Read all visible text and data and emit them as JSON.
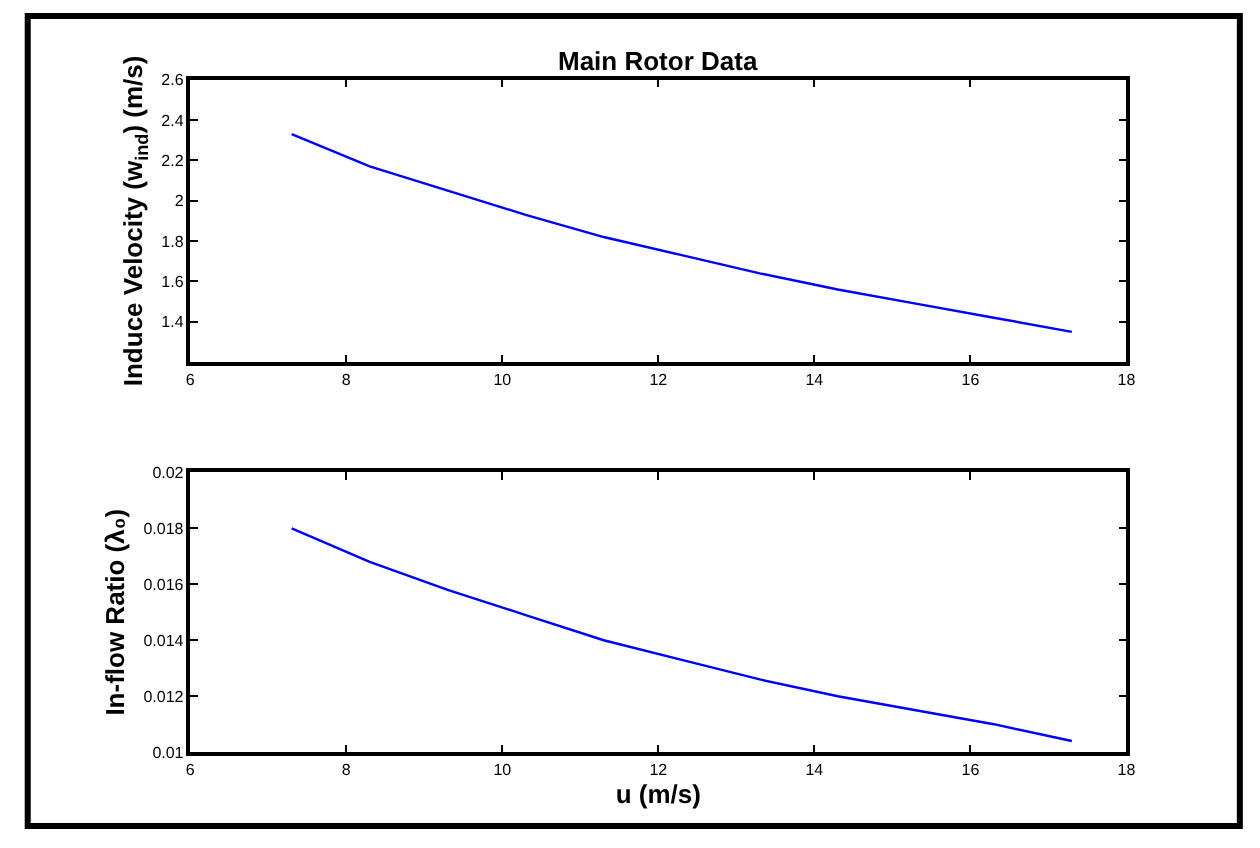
{
  "chart_data": [
    {
      "type": "line",
      "title": "Main Rotor Data",
      "ylabel": "Induce Velocity (w$_{ind}$) (m/s)",
      "x": [
        7.3,
        8.3,
        9.3,
        10.3,
        11.3,
        12.3,
        13.3,
        14.3,
        15.3,
        16.3,
        17.3
      ],
      "series": [
        {
          "color": "#0000ff",
          "values": [
            2.33,
            2.17,
            2.05,
            1.93,
            1.82,
            1.73,
            1.64,
            1.56,
            1.49,
            1.42,
            1.35
          ]
        }
      ],
      "xlim": [
        6,
        18
      ],
      "xticks": [
        6,
        8,
        10,
        12,
        14,
        16,
        18
      ],
      "ylim": [
        1.2,
        2.6
      ],
      "yticks": [
        1.4,
        1.6,
        1.8,
        2,
        2.2,
        2.4,
        2.6
      ]
    },
    {
      "type": "line",
      "xlabel": "u (m/s)",
      "ylabel": "In-flow Ratio (λ₀)",
      "x": [
        7.3,
        8.3,
        9.3,
        10.3,
        11.3,
        12.3,
        13.3,
        14.3,
        15.3,
        16.3,
        17.3
      ],
      "series": [
        {
          "color": "#0000ff",
          "values": [
            0.018,
            0.0168,
            0.0158,
            0.0149,
            0.014,
            0.0133,
            0.0126,
            0.012,
            0.0115,
            0.011,
            0.0104
          ]
        }
      ],
      "xlim": [
        6,
        18
      ],
      "xticks": [
        6,
        8,
        10,
        12,
        14,
        16,
        18
      ],
      "ylim": [
        0.01,
        0.02
      ],
      "yticks": [
        0.01,
        0.012,
        0.014,
        0.016,
        0.018,
        0.02
      ]
    }
  ]
}
